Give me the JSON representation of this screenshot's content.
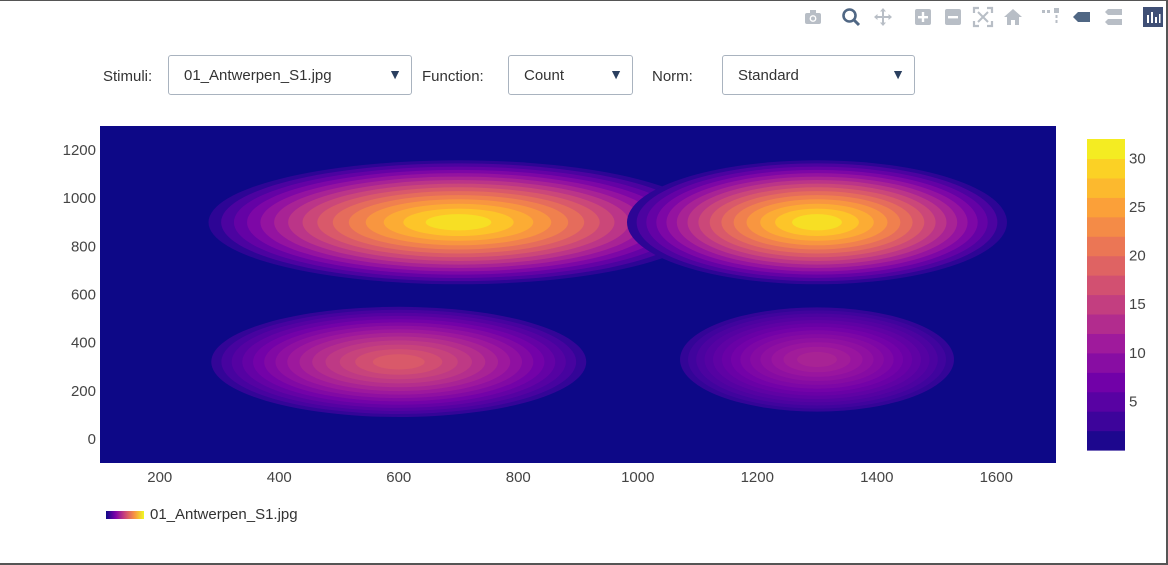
{
  "modebar": {
    "icons": [
      "camera-icon",
      "zoom-icon",
      "pan-icon",
      "zoom-in-icon",
      "zoom-out-icon",
      "autoscale-icon",
      "home-icon",
      "spike-lines-icon",
      "hover-closest-icon",
      "hover-compare-icon",
      "plotly-logo-icon"
    ]
  },
  "controls": {
    "stimuli_label": "Stimuli:",
    "stimuli_value": "01_Antwerpen_S1.jpg",
    "function_label": "Function:",
    "function_value": "Count",
    "norm_label": "Norm:",
    "norm_value": "Standard"
  },
  "legend": {
    "label": "01_Antwerpen_S1.jpg"
  },
  "colors": {
    "background": "#0d0887",
    "scale": [
      "#0d0887",
      "#46039f",
      "#7201a8",
      "#9c179e",
      "#bd3786",
      "#d8576b",
      "#ed7953",
      "#fb9f3a",
      "#fdca26",
      "#f0f921"
    ]
  },
  "chart_data": {
    "type": "heatmap",
    "subtype": "2d-density-contour",
    "title": "",
    "xlabel": "",
    "ylabel": "",
    "xlim": [
      100,
      1700
    ],
    "ylim": [
      -100,
      1300
    ],
    "xticks": [
      200,
      400,
      600,
      800,
      1000,
      1200,
      1400,
      1600
    ],
    "yticks": [
      0,
      200,
      400,
      600,
      800,
      1000,
      1200
    ],
    "colorbar": {
      "range": [
        0,
        32
      ],
      "ticks": [
        5,
        10,
        15,
        20,
        25,
        30
      ]
    },
    "series": [
      {
        "name": "01_Antwerpen_S1.jpg",
        "hotspots": [
          {
            "x": 700,
            "y": 900,
            "peak": 30
          },
          {
            "x": 1300,
            "y": 900,
            "peak": 30
          },
          {
            "x": 600,
            "y": 320,
            "peak": 18
          },
          {
            "x": 1300,
            "y": 330,
            "peak": 12
          }
        ]
      }
    ]
  }
}
